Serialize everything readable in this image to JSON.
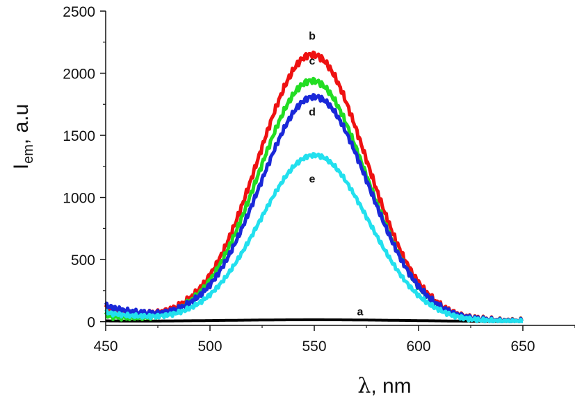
{
  "chart_data": {
    "type": "line",
    "xlabel_symbol": "λ",
    "xlabel_unit": ", nm",
    "ylabel_main": "I",
    "ylabel_sub": "em",
    "ylabel_unit": ", a.u",
    "xlim": [
      450,
      675
    ],
    "ylim": [
      -30,
      2500
    ],
    "xticks": [
      450,
      500,
      550,
      600,
      650
    ],
    "yticks": [
      0,
      500,
      1000,
      1500,
      2000,
      2500
    ],
    "grid": false,
    "series": [
      {
        "name": "a",
        "color": "#000000",
        "peak": 15,
        "center": 550,
        "sigma": 45,
        "base_start": 5,
        "label_x": 572,
        "label_y": 50
      },
      {
        "name": "b",
        "color": "#ee1111",
        "peak": 2150,
        "center": 549,
        "sigma": 26,
        "base_start": 110,
        "label_x": 549,
        "label_y": 2270
      },
      {
        "name": "c",
        "color": "#22dd22",
        "peak": 1940,
        "center": 549,
        "sigma": 26,
        "base_start": 50,
        "label_x": 549,
        "label_y": 2070
      },
      {
        "name": "d",
        "color": "#1a28d8",
        "peak": 1810,
        "center": 550,
        "sigma": 26,
        "base_start": 130,
        "label_x": 549,
        "label_y": 1660
      },
      {
        "name": "e",
        "color": "#22e0ee",
        "peak": 1340,
        "center": 550,
        "sigma": 26,
        "base_start": 75,
        "label_x": 549,
        "label_y": 1120
      }
    ]
  }
}
